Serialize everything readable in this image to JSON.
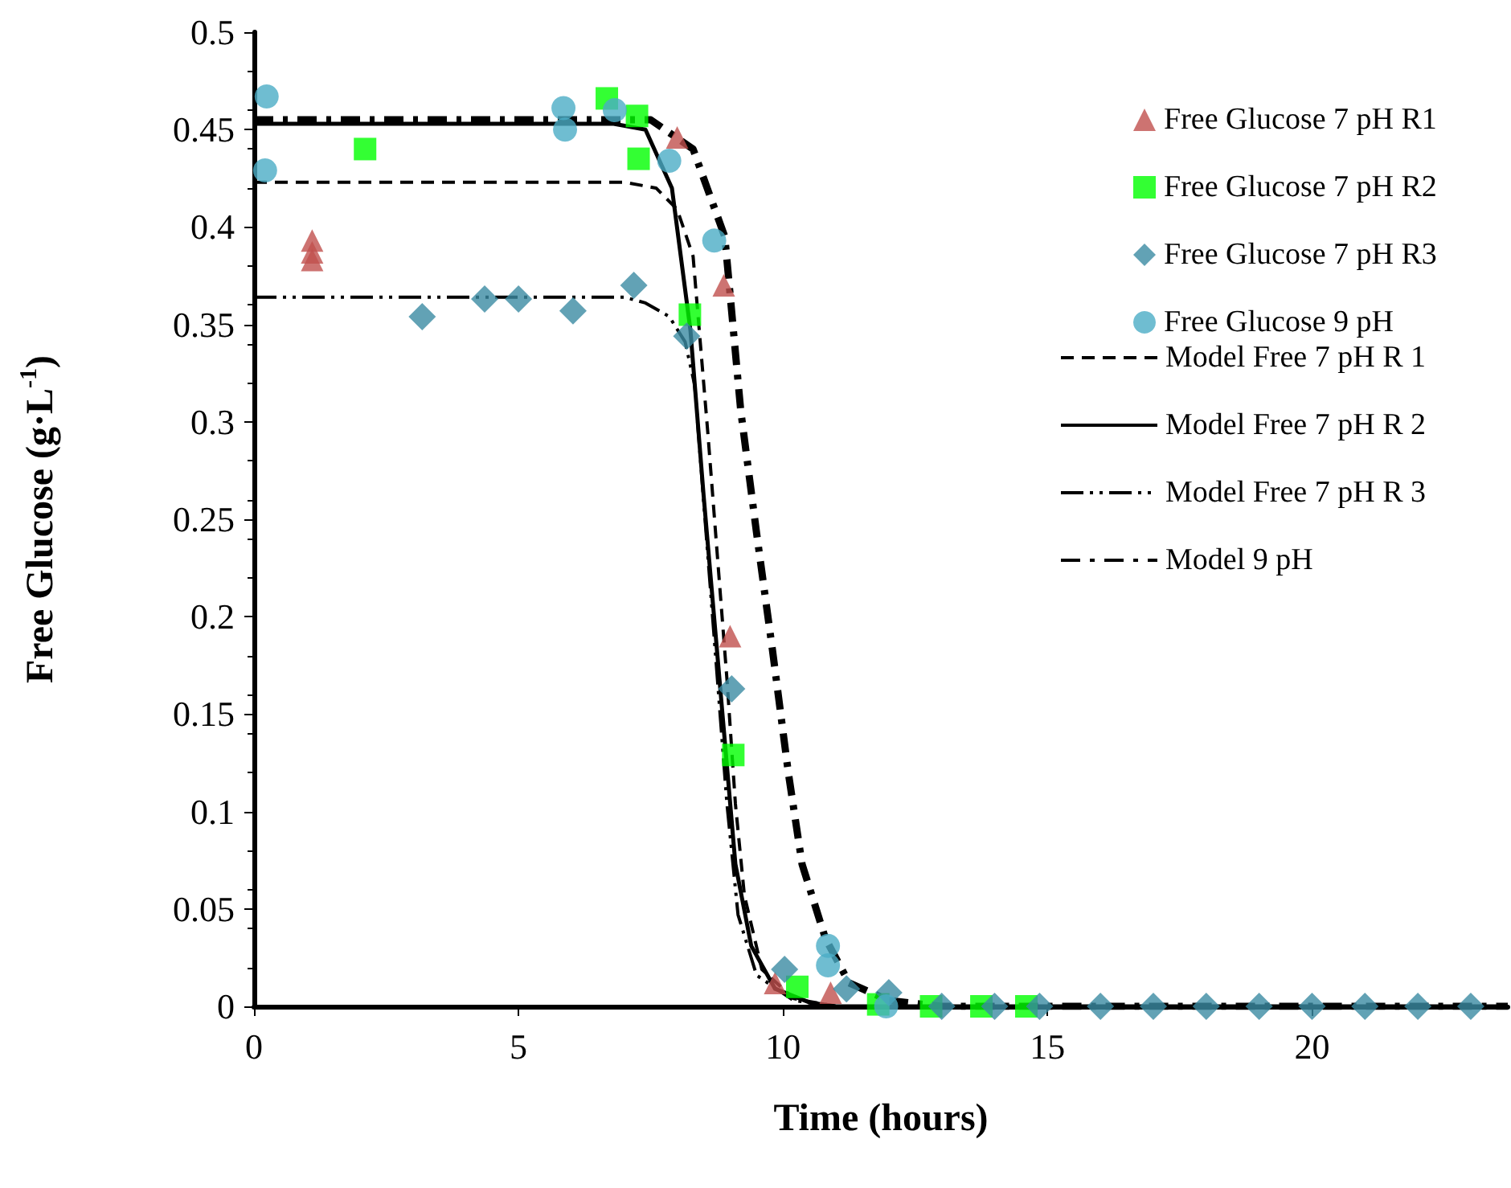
{
  "chart_data": {
    "type": "scatter",
    "xlabel": "Time (hours)",
    "ylabel": "Free Glucose (g·L$^{-1}$)",
    "xlim": [
      0,
      23.7
    ],
    "xticks": [
      0,
      5,
      10,
      15,
      20
    ],
    "ylim": [
      0,
      0.5
    ],
    "yticks": [
      0,
      0.05,
      0.1,
      0.15,
      0.2,
      0.25,
      0.3,
      0.35,
      0.4,
      0.45,
      0.5
    ],
    "grid": false,
    "legend": "top right",
    "series": [
      {
        "name": "Free Glucose 7 pH R1",
        "marker": "triangle",
        "color": "#c0504d",
        "x": [
          1.1,
          1.1,
          1.1,
          8.0,
          8.88,
          9.0,
          9.85,
          10.9
        ],
        "values": [
          0.393,
          0.387,
          0.383,
          0.446,
          0.37,
          0.19,
          0.012,
          0.007
        ]
      },
      {
        "name": "Free Glucose 7 pH R2",
        "marker": "square",
        "color": "#00ff00",
        "x": [
          2.1,
          6.67,
          7.24,
          7.27,
          8.24,
          9.06,
          10.27,
          11.8,
          12.8,
          13.75,
          14.6
        ],
        "values": [
          0.44,
          0.466,
          0.457,
          0.435,
          0.355,
          0.129,
          0.01,
          0.001,
          0,
          0,
          0
        ]
      },
      {
        "name": "Free Glucose 7 pH R3",
        "marker": "diamond",
        "color": "#3b8ba3",
        "x": [
          3.18,
          4.36,
          5.0,
          6.03,
          7.18,
          8.18,
          9.03,
          10.03,
          11.2,
          12.0,
          13,
          14,
          14.85,
          16,
          17,
          18,
          19,
          20,
          21,
          22,
          23
        ],
        "values": [
          0.354,
          0.363,
          0.363,
          0.357,
          0.37,
          0.344,
          0.163,
          0.019,
          0.009,
          0.007,
          0,
          0,
          0,
          0,
          0,
          0,
          0,
          0,
          0,
          0,
          0
        ]
      },
      {
        "name": "Free Glucose 9 pH",
        "marker": "circle",
        "color": "#4bacc6",
        "x": [
          0.24,
          0.21,
          5.85,
          5.88,
          6.82,
          7.85,
          8.7,
          10.85,
          10.85,
          11.95
        ],
        "values": [
          0.467,
          0.429,
          0.461,
          0.45,
          0.46,
          0.434,
          0.393,
          0.031,
          0.021,
          0
        ]
      },
      {
        "name": "Model Free 7 pH R 1",
        "type": "line",
        "marker": "none",
        "line_style": "dashed",
        "color": "#000000",
        "x": [
          0,
          7.0,
          7.6,
          8.0,
          8.3,
          8.58,
          8.76,
          8.94,
          9.1,
          9.27,
          9.6,
          10.2,
          11,
          23.7
        ],
        "values": [
          0.423,
          0.423,
          0.42,
          0.409,
          0.385,
          0.294,
          0.231,
          0.168,
          0.104,
          0.057,
          0.019,
          0.004,
          0,
          0
        ]
      },
      {
        "name": "Model Free 7 pH R 2",
        "type": "line",
        "marker": "none",
        "line_style": "solid",
        "color": "#000000",
        "x": [
          0,
          6.8,
          7.4,
          7.9,
          8.25,
          8.5,
          8.7,
          8.9,
          9.1,
          9.4,
          9.85,
          10.5,
          11,
          23.7
        ],
        "values": [
          0.453,
          0.453,
          0.45,
          0.42,
          0.347,
          0.262,
          0.199,
          0.136,
          0.073,
          0.031,
          0.009,
          0.002,
          0,
          0
        ]
      },
      {
        "name": "Model Free 7 pH R 3",
        "type": "line",
        "marker": "none",
        "line_style": "dashdotdot",
        "color": "#000000",
        "x": [
          0,
          7.0,
          7.4,
          7.85,
          8.15,
          8.33,
          8.58,
          8.76,
          8.94,
          9.15,
          9.5,
          10.2,
          11,
          23.7
        ],
        "values": [
          0.364,
          0.364,
          0.361,
          0.354,
          0.341,
          0.319,
          0.231,
          0.168,
          0.104,
          0.047,
          0.016,
          0.003,
          0,
          0
        ]
      },
      {
        "name": "Model 9 pH",
        "type": "line",
        "marker": "none",
        "line_style": "dashdot",
        "color": "#000000",
        "x": [
          0,
          7.5,
          8.3,
          8.9,
          9.2,
          9.5,
          9.8,
          10.1,
          10.36,
          10.8,
          11.25,
          12,
          13,
          23.7
        ],
        "values": [
          0.455,
          0.455,
          0.44,
          0.395,
          0.306,
          0.243,
          0.183,
          0.12,
          0.073,
          0.035,
          0.012,
          0.003,
          0,
          0
        ]
      }
    ]
  }
}
